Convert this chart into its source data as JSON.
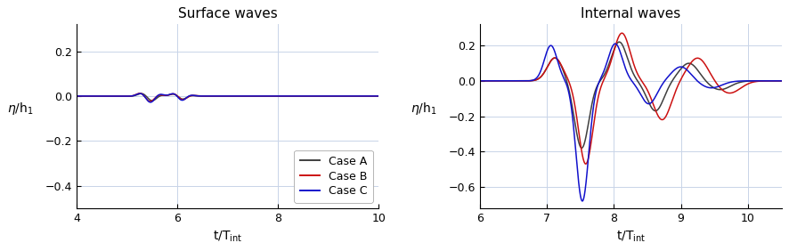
{
  "left_title": "Surface waves",
  "right_title": "Internal waves",
  "left_xlim": [
    4,
    10
  ],
  "left_ylim": [
    -0.5,
    0.32
  ],
  "left_yticks": [
    0.2,
    0.0,
    -0.2,
    -0.4
  ],
  "left_xticks": [
    4,
    6,
    8,
    10
  ],
  "right_xlim": [
    6,
    10.5
  ],
  "right_ylim": [
    -0.72,
    0.32
  ],
  "right_yticks": [
    0.2,
    0.0,
    -0.2,
    -0.4,
    -0.6
  ],
  "right_xticks": [
    6,
    7,
    8,
    9,
    10
  ],
  "colors": {
    "A": "#3f3f3f",
    "B": "#cc1111",
    "C": "#1111cc"
  },
  "legend_labels": [
    "Case A",
    "Case B",
    "Case C"
  ],
  "bg_color": "#ffffff",
  "grid_color": "#c8d4e8"
}
